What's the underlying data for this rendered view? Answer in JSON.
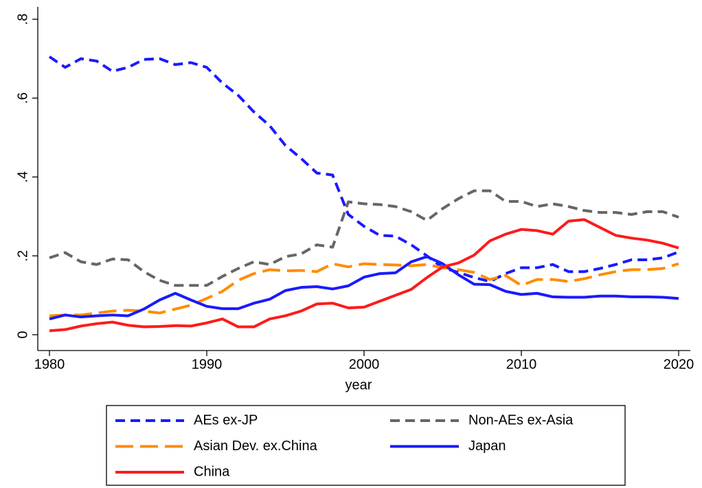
{
  "chart_data": {
    "type": "line",
    "x_label": "year",
    "x": [
      1980,
      1981,
      1982,
      1983,
      1984,
      1985,
      1986,
      1987,
      1988,
      1989,
      1990,
      1991,
      1992,
      1993,
      1994,
      1995,
      1996,
      1997,
      1998,
      1999,
      2000,
      2001,
      2002,
      2003,
      2004,
      2005,
      2006,
      2007,
      2008,
      2009,
      2010,
      2011,
      2012,
      2013,
      2014,
      2015,
      2016,
      2017,
      2018,
      2019,
      2020
    ],
    "xlim": [
      1980,
      2020
    ],
    "xticks": [
      1980,
      1990,
      2000,
      2010,
      2020
    ],
    "ylim": [
      0,
      0.8
    ],
    "yticks": [
      0,
      {
        "value": 0.2,
        "label": ".2"
      },
      {
        "value": 0.4,
        "label": ".4"
      },
      {
        "value": 0.6,
        "label": ".6"
      },
      {
        "value": 0.8,
        "label": ".8"
      }
    ],
    "series": [
      {
        "name": "AEs ex-JP",
        "color": "#1a1aff",
        "dash": "short",
        "values": [
          0.705,
          0.678,
          0.7,
          0.694,
          0.668,
          0.678,
          0.698,
          0.7,
          0.685,
          0.69,
          0.678,
          0.638,
          0.607,
          0.565,
          0.53,
          0.48,
          0.447,
          0.41,
          0.405,
          0.305,
          0.275,
          0.252,
          0.25,
          0.228,
          0.2,
          0.17,
          0.158,
          0.145,
          0.135,
          0.155,
          0.17,
          0.17,
          0.178,
          0.16,
          0.16,
          0.168,
          0.178,
          0.19,
          0.19,
          0.195,
          0.21
        ]
      },
      {
        "name": "Non-AEs ex-Asia",
        "color": "#666666",
        "dash": "short",
        "values": [
          0.195,
          0.208,
          0.185,
          0.178,
          0.192,
          0.19,
          0.16,
          0.138,
          0.125,
          0.125,
          0.125,
          0.148,
          0.168,
          0.185,
          0.178,
          0.198,
          0.205,
          0.228,
          0.222,
          0.337,
          0.332,
          0.33,
          0.325,
          0.312,
          0.29,
          0.32,
          0.345,
          0.365,
          0.365,
          0.338,
          0.338,
          0.325,
          0.332,
          0.325,
          0.315,
          0.31,
          0.31,
          0.305,
          0.312,
          0.312,
          0.298
        ]
      },
      {
        "name": "Asian Dev. ex.China",
        "color": "#ff8c00",
        "dash": "long",
        "values": [
          0.048,
          0.05,
          0.05,
          0.055,
          0.06,
          0.062,
          0.06,
          0.055,
          0.065,
          0.075,
          0.092,
          0.11,
          0.138,
          0.155,
          0.165,
          0.162,
          0.163,
          0.16,
          0.18,
          0.172,
          0.18,
          0.178,
          0.177,
          0.175,
          0.178,
          0.17,
          0.165,
          0.158,
          0.14,
          0.15,
          0.125,
          0.14,
          0.14,
          0.135,
          0.142,
          0.152,
          0.16,
          0.165,
          0.165,
          0.168,
          0.18
        ]
      },
      {
        "name": "Japan",
        "color": "#1a1aff",
        "dash": "solid",
        "values": [
          0.04,
          0.05,
          0.045,
          0.048,
          0.05,
          0.048,
          0.065,
          0.088,
          0.105,
          0.088,
          0.072,
          0.066,
          0.066,
          0.08,
          0.09,
          0.112,
          0.12,
          0.122,
          0.116,
          0.124,
          0.146,
          0.155,
          0.157,
          0.185,
          0.198,
          0.18,
          0.152,
          0.128,
          0.127,
          0.11,
          0.102,
          0.105,
          0.096,
          0.095,
          0.095,
          0.098,
          0.098,
          0.096,
          0.096,
          0.095,
          0.092
        ]
      },
      {
        "name": "China",
        "color": "#ff1a1a",
        "dash": "solid",
        "values": [
          0.01,
          0.013,
          0.022,
          0.028,
          0.032,
          0.024,
          0.02,
          0.021,
          0.023,
          0.022,
          0.03,
          0.04,
          0.02,
          0.02,
          0.04,
          0.048,
          0.06,
          0.078,
          0.08,
          0.068,
          0.07,
          0.085,
          0.1,
          0.115,
          0.145,
          0.172,
          0.182,
          0.202,
          0.238,
          0.255,
          0.267,
          0.264,
          0.255,
          0.288,
          0.292,
          0.272,
          0.252,
          0.245,
          0.24,
          0.232,
          0.22
        ]
      }
    ]
  }
}
